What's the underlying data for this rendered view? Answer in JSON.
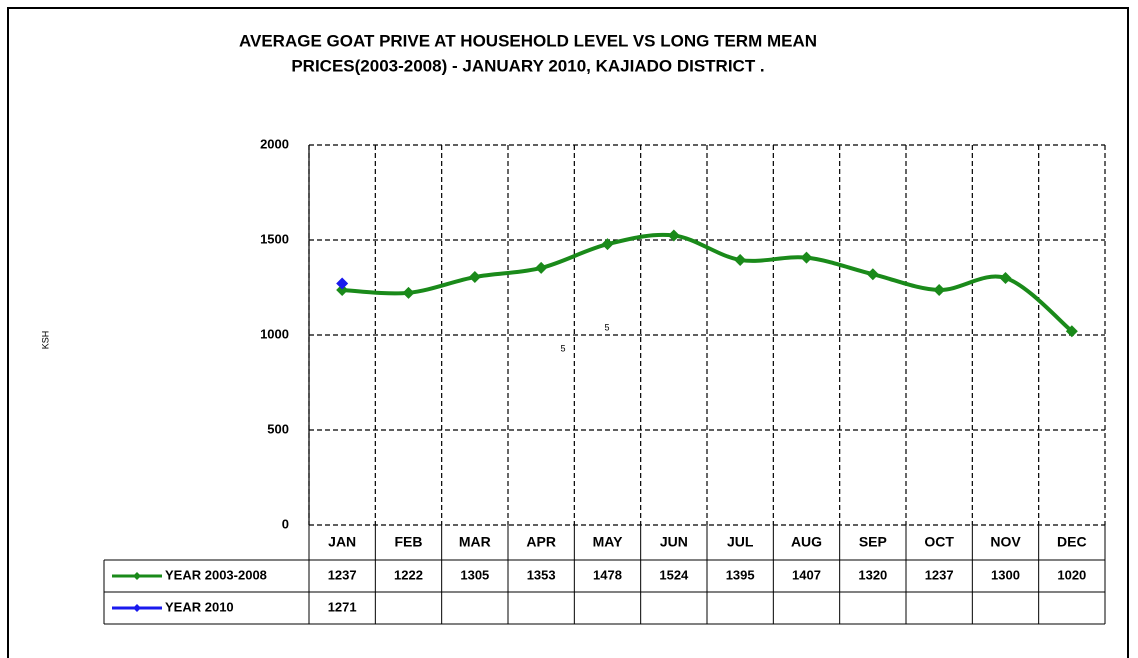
{
  "chart_data": {
    "type": "line",
    "title": [
      "AVERAGE GOAT PRIVE AT HOUSEHOLD LEVEL VS LONG TERM MEAN",
      "PRICES(2003-2008) - JANUARY 2010, KAJIADO DISTRICT ."
    ],
    "y_label": "KSH",
    "categories": [
      "JAN",
      "FEB",
      "MAR",
      "APR",
      "MAY",
      "JUN",
      "JUL",
      "AUG",
      "SEP",
      "OCT",
      "NOV",
      "DEC"
    ],
    "series": [
      {
        "name": "YEAR 2003-2008",
        "color": "#1a8a1a",
        "values": [
          1237,
          1222,
          1305,
          1353,
          1478,
          1524,
          1395,
          1407,
          1320,
          1237,
          1300,
          1020
        ]
      },
      {
        "name": "YEAR 2010",
        "color": "#1a1aee",
        "values": [
          1271,
          null,
          null,
          null,
          null,
          null,
          null,
          null,
          null,
          null,
          null,
          null
        ]
      }
    ],
    "ylim": [
      0,
      2000
    ],
    "yticks": [
      0,
      500,
      1000,
      1500,
      2000
    ],
    "grid": true,
    "annotations": [
      "5",
      "5"
    ]
  }
}
